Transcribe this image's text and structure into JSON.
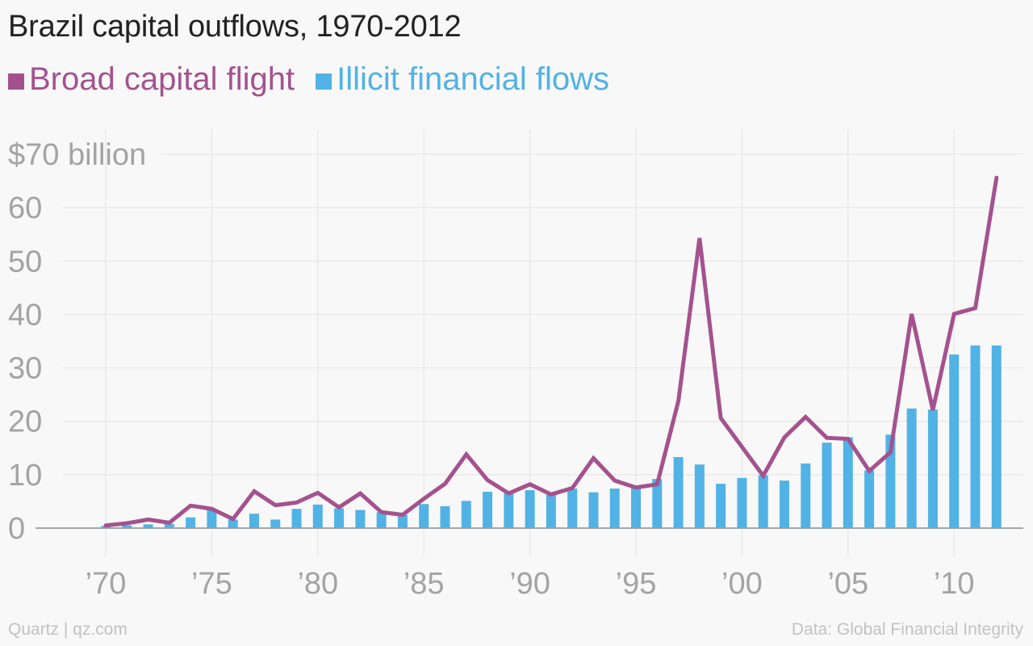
{
  "chart_data": {
    "type": "bar",
    "title": "Brazil capital outflows, 1970-2012",
    "x": [
      1970,
      1971,
      1972,
      1973,
      1974,
      1975,
      1976,
      1977,
      1978,
      1979,
      1980,
      1981,
      1982,
      1983,
      1984,
      1985,
      1986,
      1987,
      1988,
      1989,
      1990,
      1991,
      1992,
      1993,
      1994,
      1995,
      1996,
      1997,
      1998,
      1999,
      2000,
      2001,
      2002,
      2003,
      2004,
      2005,
      2006,
      2007,
      2008,
      2009,
      2010,
      2011,
      2012
    ],
    "series": [
      {
        "name": "Broad capital flight",
        "mark": "line",
        "color": "#a4528e",
        "values": [
          0.5,
          0.9,
          1.6,
          1.0,
          4.2,
          3.6,
          1.7,
          6.9,
          4.3,
          4.8,
          6.6,
          3.9,
          6.5,
          3.0,
          2.5,
          5.5,
          8.3,
          13.8,
          9.0,
          6.5,
          8.2,
          6.3,
          7.5,
          13.1,
          8.9,
          7.6,
          8.2,
          23.8,
          54.3,
          20.6,
          15.2,
          9.8,
          17.0,
          20.8,
          16.9,
          16.7,
          10.7,
          14.2,
          40.1,
          22.1,
          40.1,
          41.2,
          65.6
        ]
      },
      {
        "name": "Illicit financial flows",
        "mark": "bar",
        "color": "#51b2e5",
        "values": [
          0.4,
          0.5,
          0.7,
          0.8,
          2.0,
          3.3,
          1.6,
          2.7,
          1.6,
          3.6,
          4.4,
          3.7,
          3.4,
          3.0,
          2.5,
          4.5,
          4.1,
          5.1,
          6.8,
          6.5,
          7.1,
          6.3,
          7.4,
          6.7,
          7.4,
          7.8,
          9.2,
          13.3,
          11.9,
          8.3,
          9.4,
          9.9,
          8.9,
          12.1,
          16.0,
          17.0,
          10.8,
          17.5,
          22.4,
          22.2,
          32.5,
          34.2,
          34.2
        ]
      }
    ],
    "ylim": [
      0,
      70
    ],
    "yticks": [
      0,
      10,
      20,
      30,
      40,
      50,
      60,
      70
    ],
    "ytick_labels": [
      "0",
      "10",
      "20",
      "30",
      "40",
      "50",
      "60",
      "$70 billion"
    ],
    "xticks": [
      1970,
      1975,
      1980,
      1985,
      1990,
      1995,
      2000,
      2005,
      2010
    ],
    "xtick_labels": [
      "’70",
      "’75",
      "’80",
      "’85",
      "’90",
      "’95",
      "’00",
      "’05",
      "’10"
    ],
    "xlim": [
      1969,
      2013
    ],
    "grid": true,
    "legend_position": "top-left"
  },
  "footer": {
    "source_left": "Quartz | qz.com",
    "source_right": "Data: Global Financial Integrity"
  }
}
